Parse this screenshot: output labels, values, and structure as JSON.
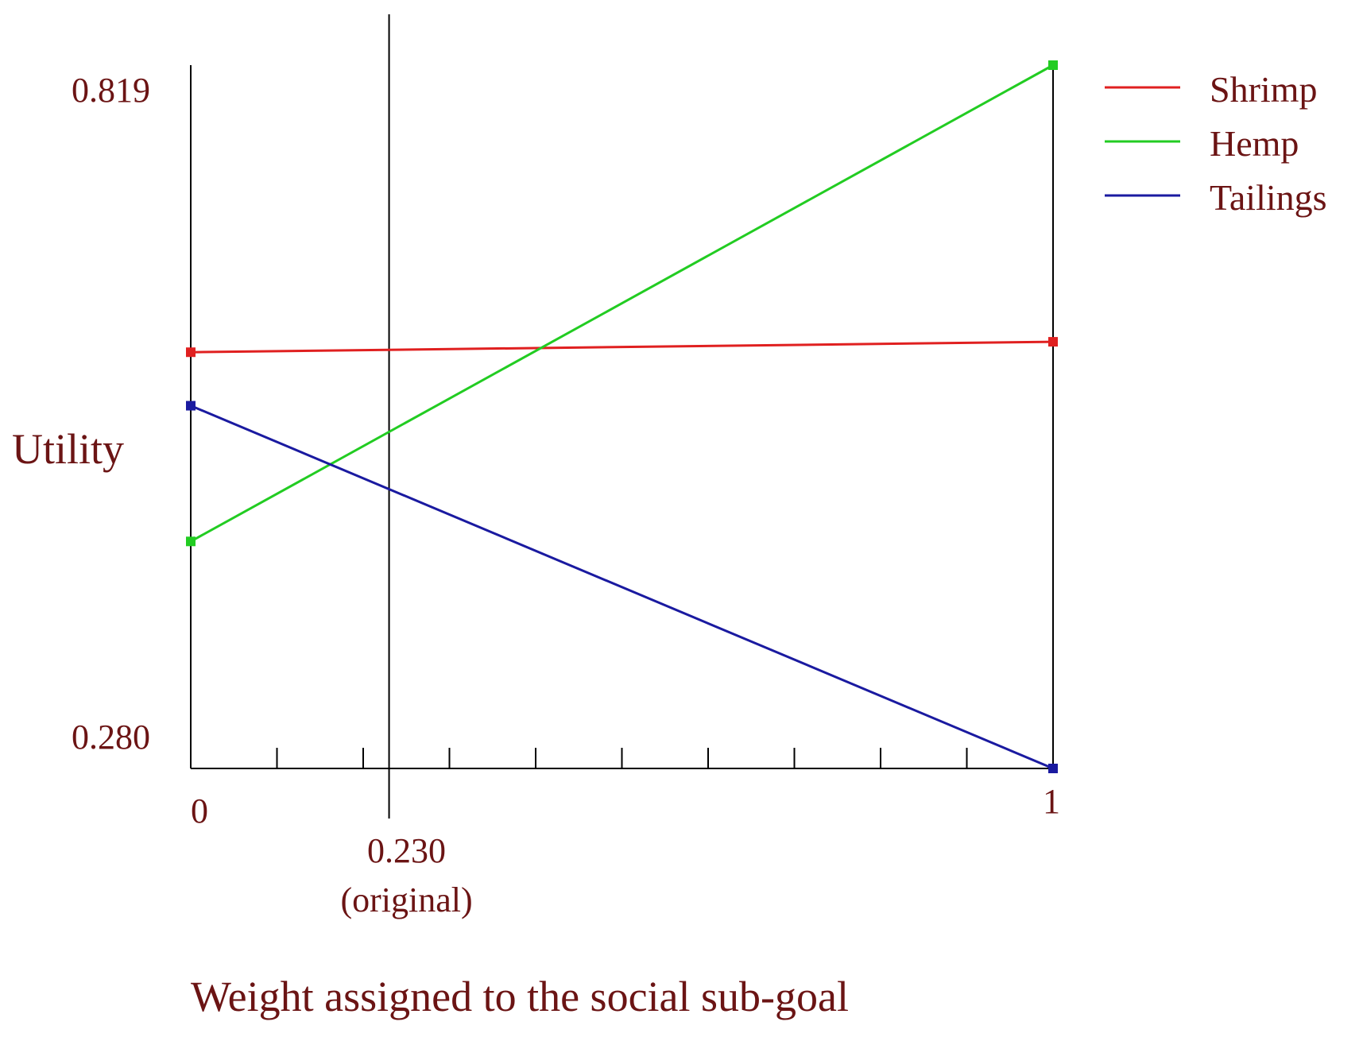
{
  "chart_data": {
    "type": "line",
    "title": "",
    "xlabel": "Weight assigned to the social sub-goal",
    "ylabel": "Utility",
    "xlim": [
      0,
      1
    ],
    "ylim": [
      0.28,
      0.819
    ],
    "x_tick_labels": [
      "0",
      "1"
    ],
    "y_tick_labels": [
      "0.819",
      "0.280"
    ],
    "x": [
      0,
      1
    ],
    "series": [
      {
        "name": "Shrimp",
        "values": [
          0.599,
          0.607
        ],
        "color": "#e02020"
      },
      {
        "name": "Hemp",
        "values": [
          0.454,
          0.819
        ],
        "color": "#22cc22"
      },
      {
        "name": "Tailings",
        "values": [
          0.558,
          0.28
        ],
        "color": "#1a1aa0"
      }
    ],
    "reference_line": {
      "x": 0.23,
      "label": "0.230",
      "sublabel": "(original)"
    },
    "x_minor_ticks": 10,
    "legend_position": "top-right",
    "grid": false
  }
}
